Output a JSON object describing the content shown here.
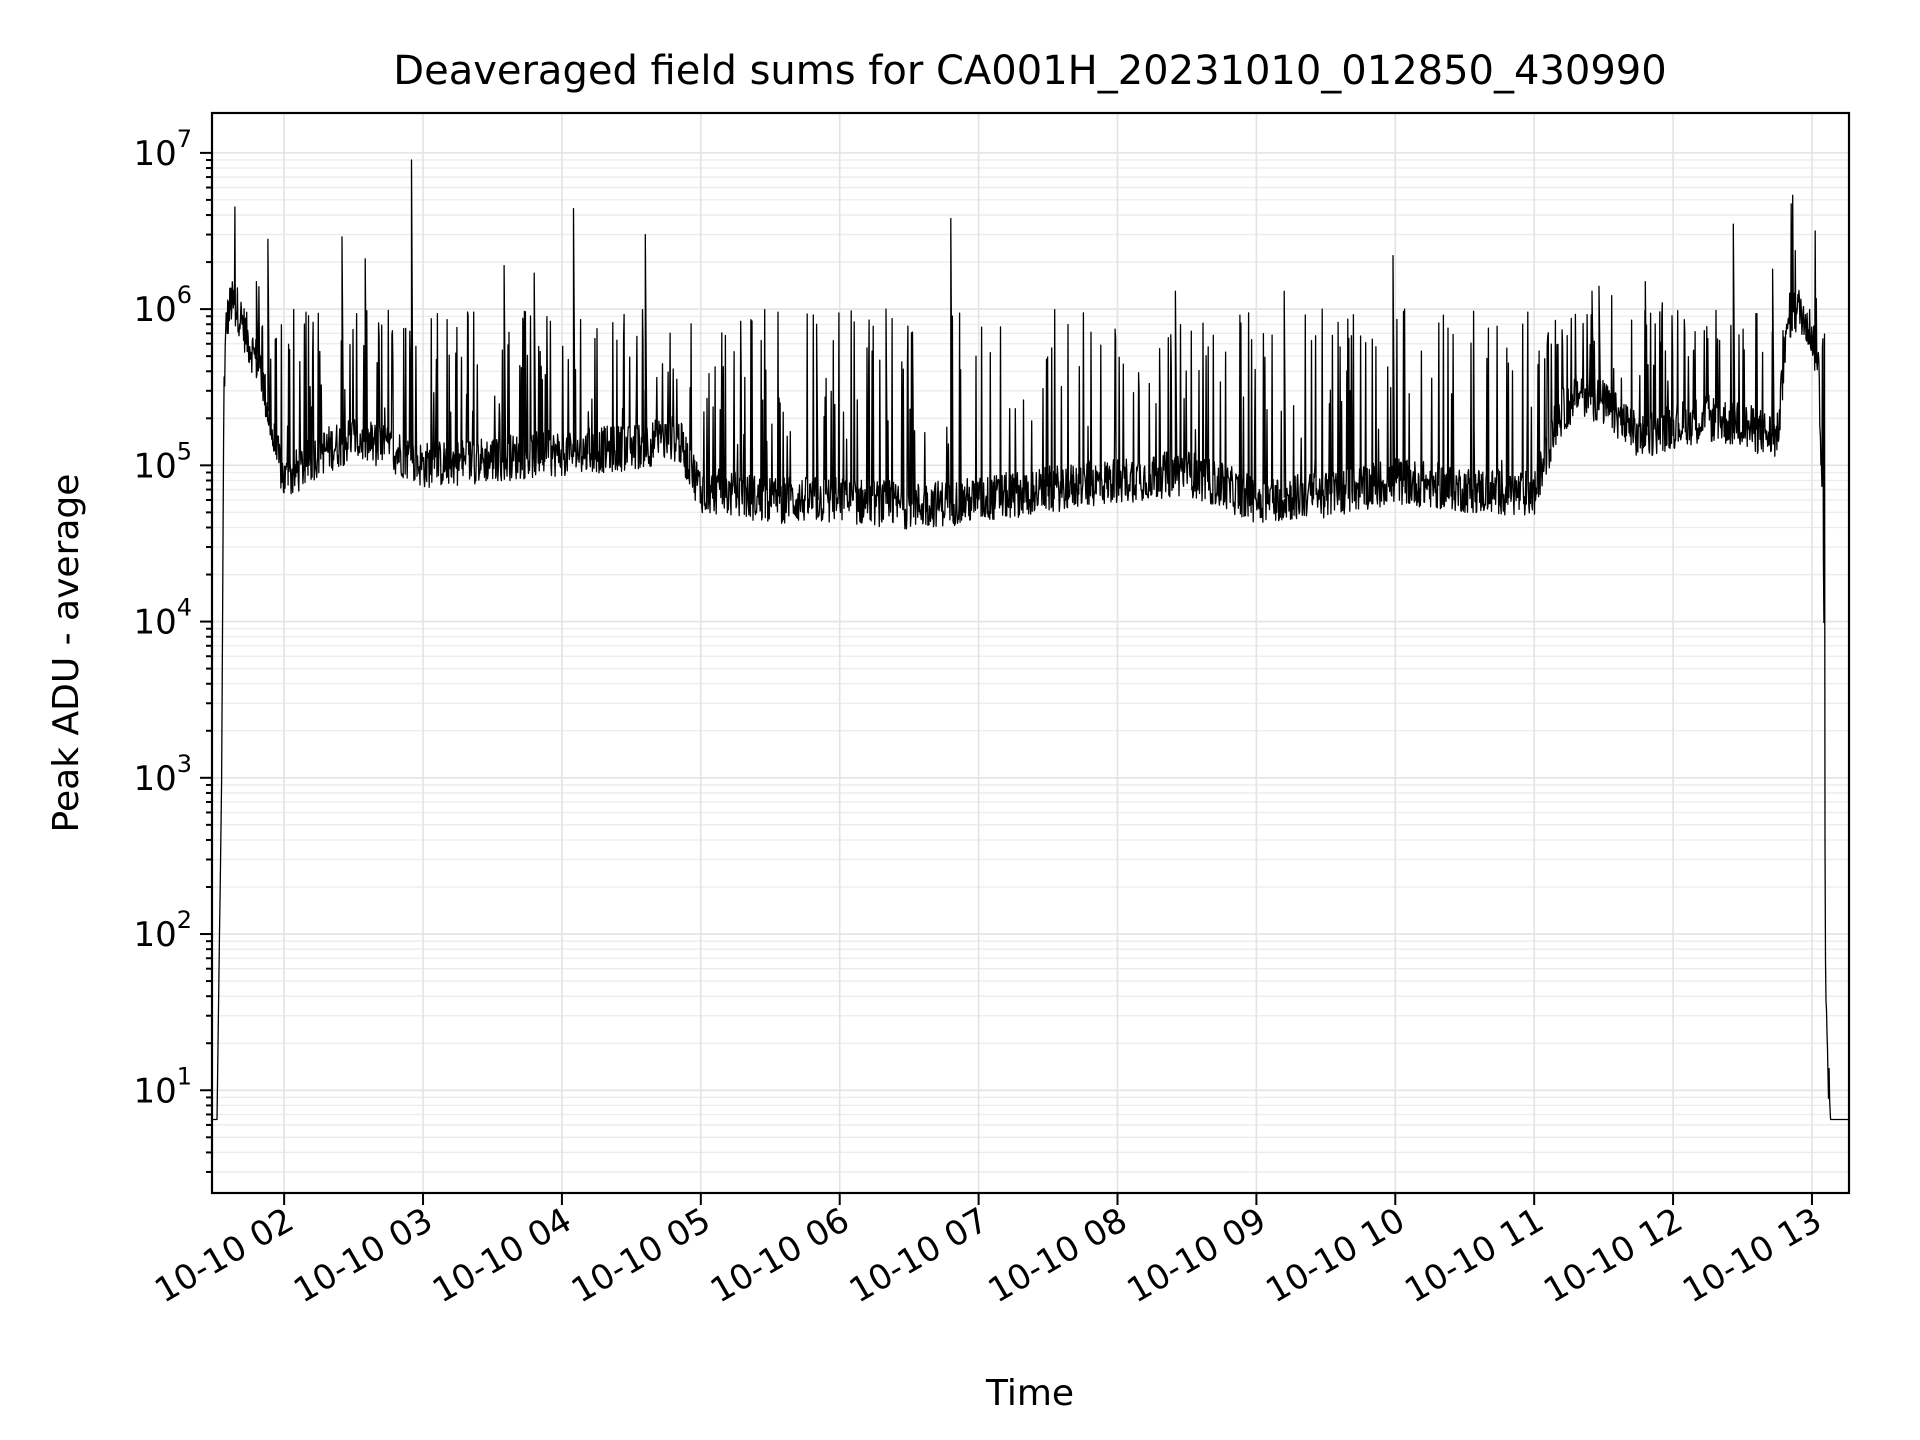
{
  "chart_data": {
    "type": "line",
    "title": "Deaveraged field sums for CA001H_20231010_012850_430990",
    "xlabel": "Time",
    "ylabel": "Peak ADU - average",
    "yscale": "log",
    "xlim": [
      "2023-10-10 01:28:50",
      "2023-10-10 13:16:00"
    ],
    "ylim": [
      2.2,
      18000000
    ],
    "grid": true,
    "x_tick_labels": [
      "10-10 02",
      "10-10 03",
      "10-10 04",
      "10-10 05",
      "10-10 06",
      "10-10 07",
      "10-10 08",
      "10-10 09",
      "10-10 10",
      "10-10 11",
      "10-10 12",
      "10-10 13"
    ],
    "y_ticks": [
      {
        "base": "10",
        "exp": "1"
      },
      {
        "base": "10",
        "exp": "2"
      },
      {
        "base": "10",
        "exp": "3"
      },
      {
        "base": "10",
        "exp": "4"
      },
      {
        "base": "10",
        "exp": "5"
      },
      {
        "base": "10",
        "exp": "6"
      },
      {
        "base": "10",
        "exp": "7"
      }
    ],
    "series": [
      {
        "color": "#000000",
        "x": [
          "2023-10-10 01:29:00",
          "2023-10-10 01:31:00",
          "2023-10-10 01:33:00",
          "2023-10-10 01:34:00",
          "2023-10-10 01:35:00",
          "2023-10-10 01:37:00",
          "2023-10-10 01:40:00",
          "2023-10-10 01:45:00",
          "2023-10-10 01:50:00",
          "2023-10-10 01:55:00",
          "2023-10-10 02:00:00",
          "2023-10-10 02:05:00",
          "2023-10-10 02:15:00",
          "2023-10-10 02:30:00",
          "2023-10-10 02:50:00",
          "2023-10-10 03:00:00",
          "2023-10-10 03:30:00",
          "2023-10-10 04:00:00",
          "2023-10-10 04:30:00",
          "2023-10-10 04:50:00",
          "2023-10-10 05:00:00",
          "2023-10-10 05:30:00",
          "2023-10-10 06:00:00",
          "2023-10-10 06:30:00",
          "2023-10-10 07:00:00",
          "2023-10-10 07:30:00",
          "2023-10-10 08:00:00",
          "2023-10-10 08:30:00",
          "2023-10-10 09:00:00",
          "2023-10-10 09:30:00",
          "2023-10-10 10:00:00",
          "2023-10-10 10:30:00",
          "2023-10-10 11:00:00",
          "2023-10-10 11:10:00",
          "2023-10-10 11:20:00",
          "2023-10-10 11:30:00",
          "2023-10-10 11:45:00",
          "2023-10-10 12:00:00",
          "2023-10-10 12:15:00",
          "2023-10-10 12:30:00",
          "2023-10-10 12:45:00",
          "2023-10-10 12:50:00",
          "2023-10-10 12:55:00",
          "2023-10-10 13:00:00",
          "2023-10-10 13:03:00",
          "2023-10-10 13:05:00",
          "2023-10-10 13:06:00",
          "2023-10-10 13:08:00",
          "2023-10-10 13:10:00",
          "2023-10-10 13:16:00"
        ],
        "y": [
          6.5,
          6.5,
          1000,
          300000,
          800000,
          1100000,
          1000000,
          600000,
          400000,
          150000,
          80000,
          90000,
          120000,
          150000,
          120000,
          100000,
          110000,
          120000,
          130000,
          150000,
          70000,
          60000,
          60000,
          55000,
          60000,
          70000,
          80000,
          90000,
          60000,
          65000,
          80000,
          70000,
          65000,
          200000,
          300000,
          250000,
          150000,
          180000,
          200000,
          180000,
          150000,
          900000,
          1000000,
          700000,
          400000,
          30000,
          30,
          6.5,
          6.5,
          6.5
        ]
      }
    ],
    "spikes": [
      {
        "x": "2023-10-10 01:48:00",
        "y": 1500000
      },
      {
        "x": "2023-10-10 01:53:00",
        "y": 2800000
      },
      {
        "x": "2023-10-10 02:25:00",
        "y": 2900000
      },
      {
        "x": "2023-10-10 02:35:00",
        "y": 2100000
      },
      {
        "x": "2023-10-10 02:55:00",
        "y": 9000000
      },
      {
        "x": "2023-10-10 03:35:00",
        "y": 1900000
      },
      {
        "x": "2023-10-10 03:48:00",
        "y": 1700000
      },
      {
        "x": "2023-10-10 04:05:00",
        "y": 4400000
      },
      {
        "x": "2023-10-10 04:36:00",
        "y": 3000000
      },
      {
        "x": "2023-10-10 05:50:00",
        "y": 800000
      },
      {
        "x": "2023-10-10 06:20:00",
        "y": 1000000
      },
      {
        "x": "2023-10-10 06:48:00",
        "y": 3800000
      },
      {
        "x": "2023-10-10 08:25:00",
        "y": 1300000
      },
      {
        "x": "2023-10-10 09:12:00",
        "y": 1300000
      },
      {
        "x": "2023-10-10 09:59:00",
        "y": 2200000
      },
      {
        "x": "2023-10-10 11:25:00",
        "y": 1300000
      },
      {
        "x": "2023-10-10 11:28:00",
        "y": 1400000
      },
      {
        "x": "2023-10-10 11:48:00",
        "y": 1500000
      },
      {
        "x": "2023-10-10 12:26:00",
        "y": 3500000
      },
      {
        "x": "2023-10-10 12:43:00",
        "y": 1800000
      }
    ]
  }
}
